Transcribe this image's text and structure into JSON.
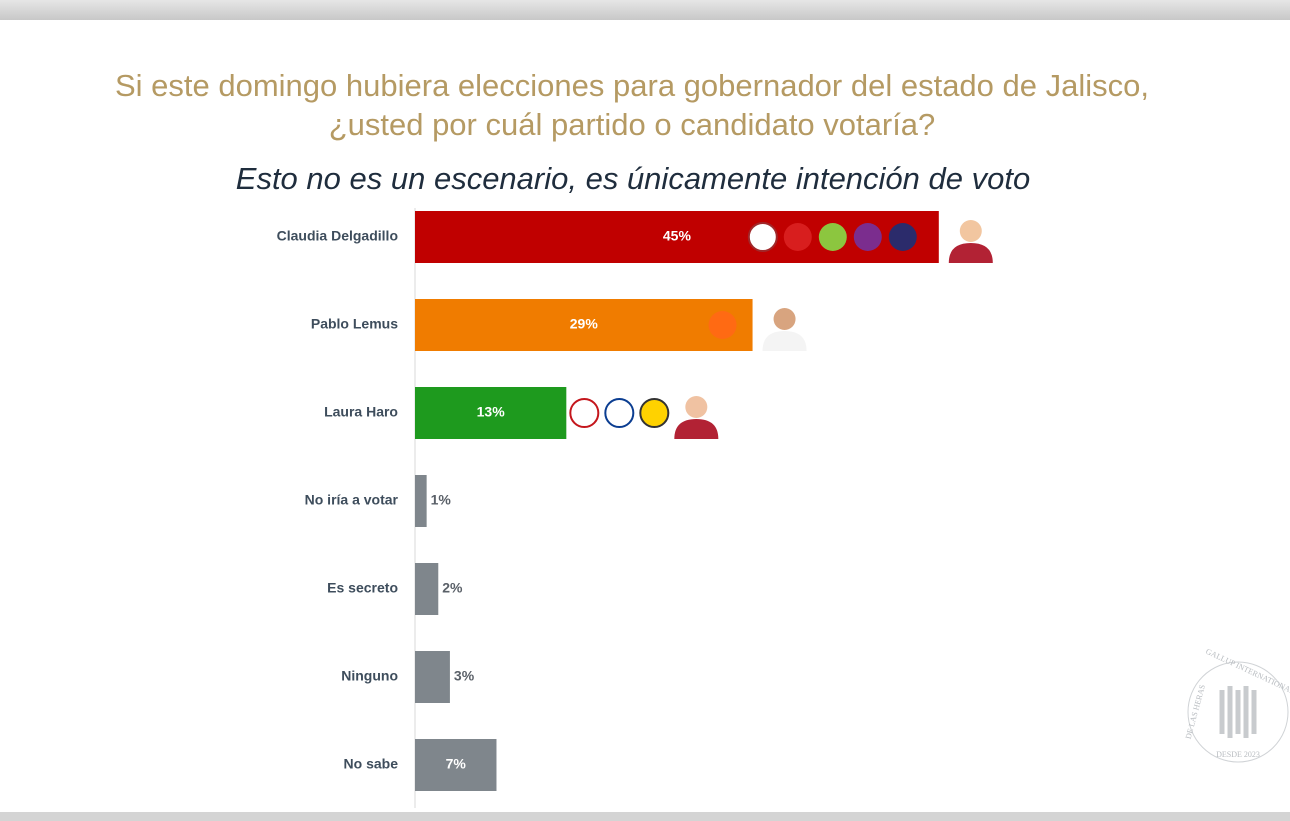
{
  "chart_data": {
    "type": "bar",
    "orientation": "horizontal",
    "title": [
      "Si este domingo hubiera elecciones para gobernador del estado de Jalisco,",
      "¿usted por cuál partido o candidato votaría?"
    ],
    "subtitle": "Esto no es un escenario, es únicamente intención de voto",
    "categories": [
      "Claudia Delgadillo",
      "Pablo Lemus",
      "Laura Haro",
      "No iría a votar",
      "Es secreto",
      "Ninguno",
      "No sabe"
    ],
    "values": [
      45,
      29,
      13,
      1,
      2,
      3,
      7
    ],
    "value_labels": [
      "45%",
      "29%",
      "13%",
      "1%",
      "2%",
      "3%",
      "7%"
    ],
    "colors": [
      "#c00000",
      "#f07c00",
      "#1e9a1e",
      "#7f868c",
      "#7f868c",
      "#7f868c",
      "#7f868c"
    ],
    "xlim": [
      0,
      50
    ],
    "watermark": {
      "top": "GALLUP INTERNATIONAL",
      "left": "DE LAS HERAS",
      "bottom": "DESDE 2023"
    }
  }
}
